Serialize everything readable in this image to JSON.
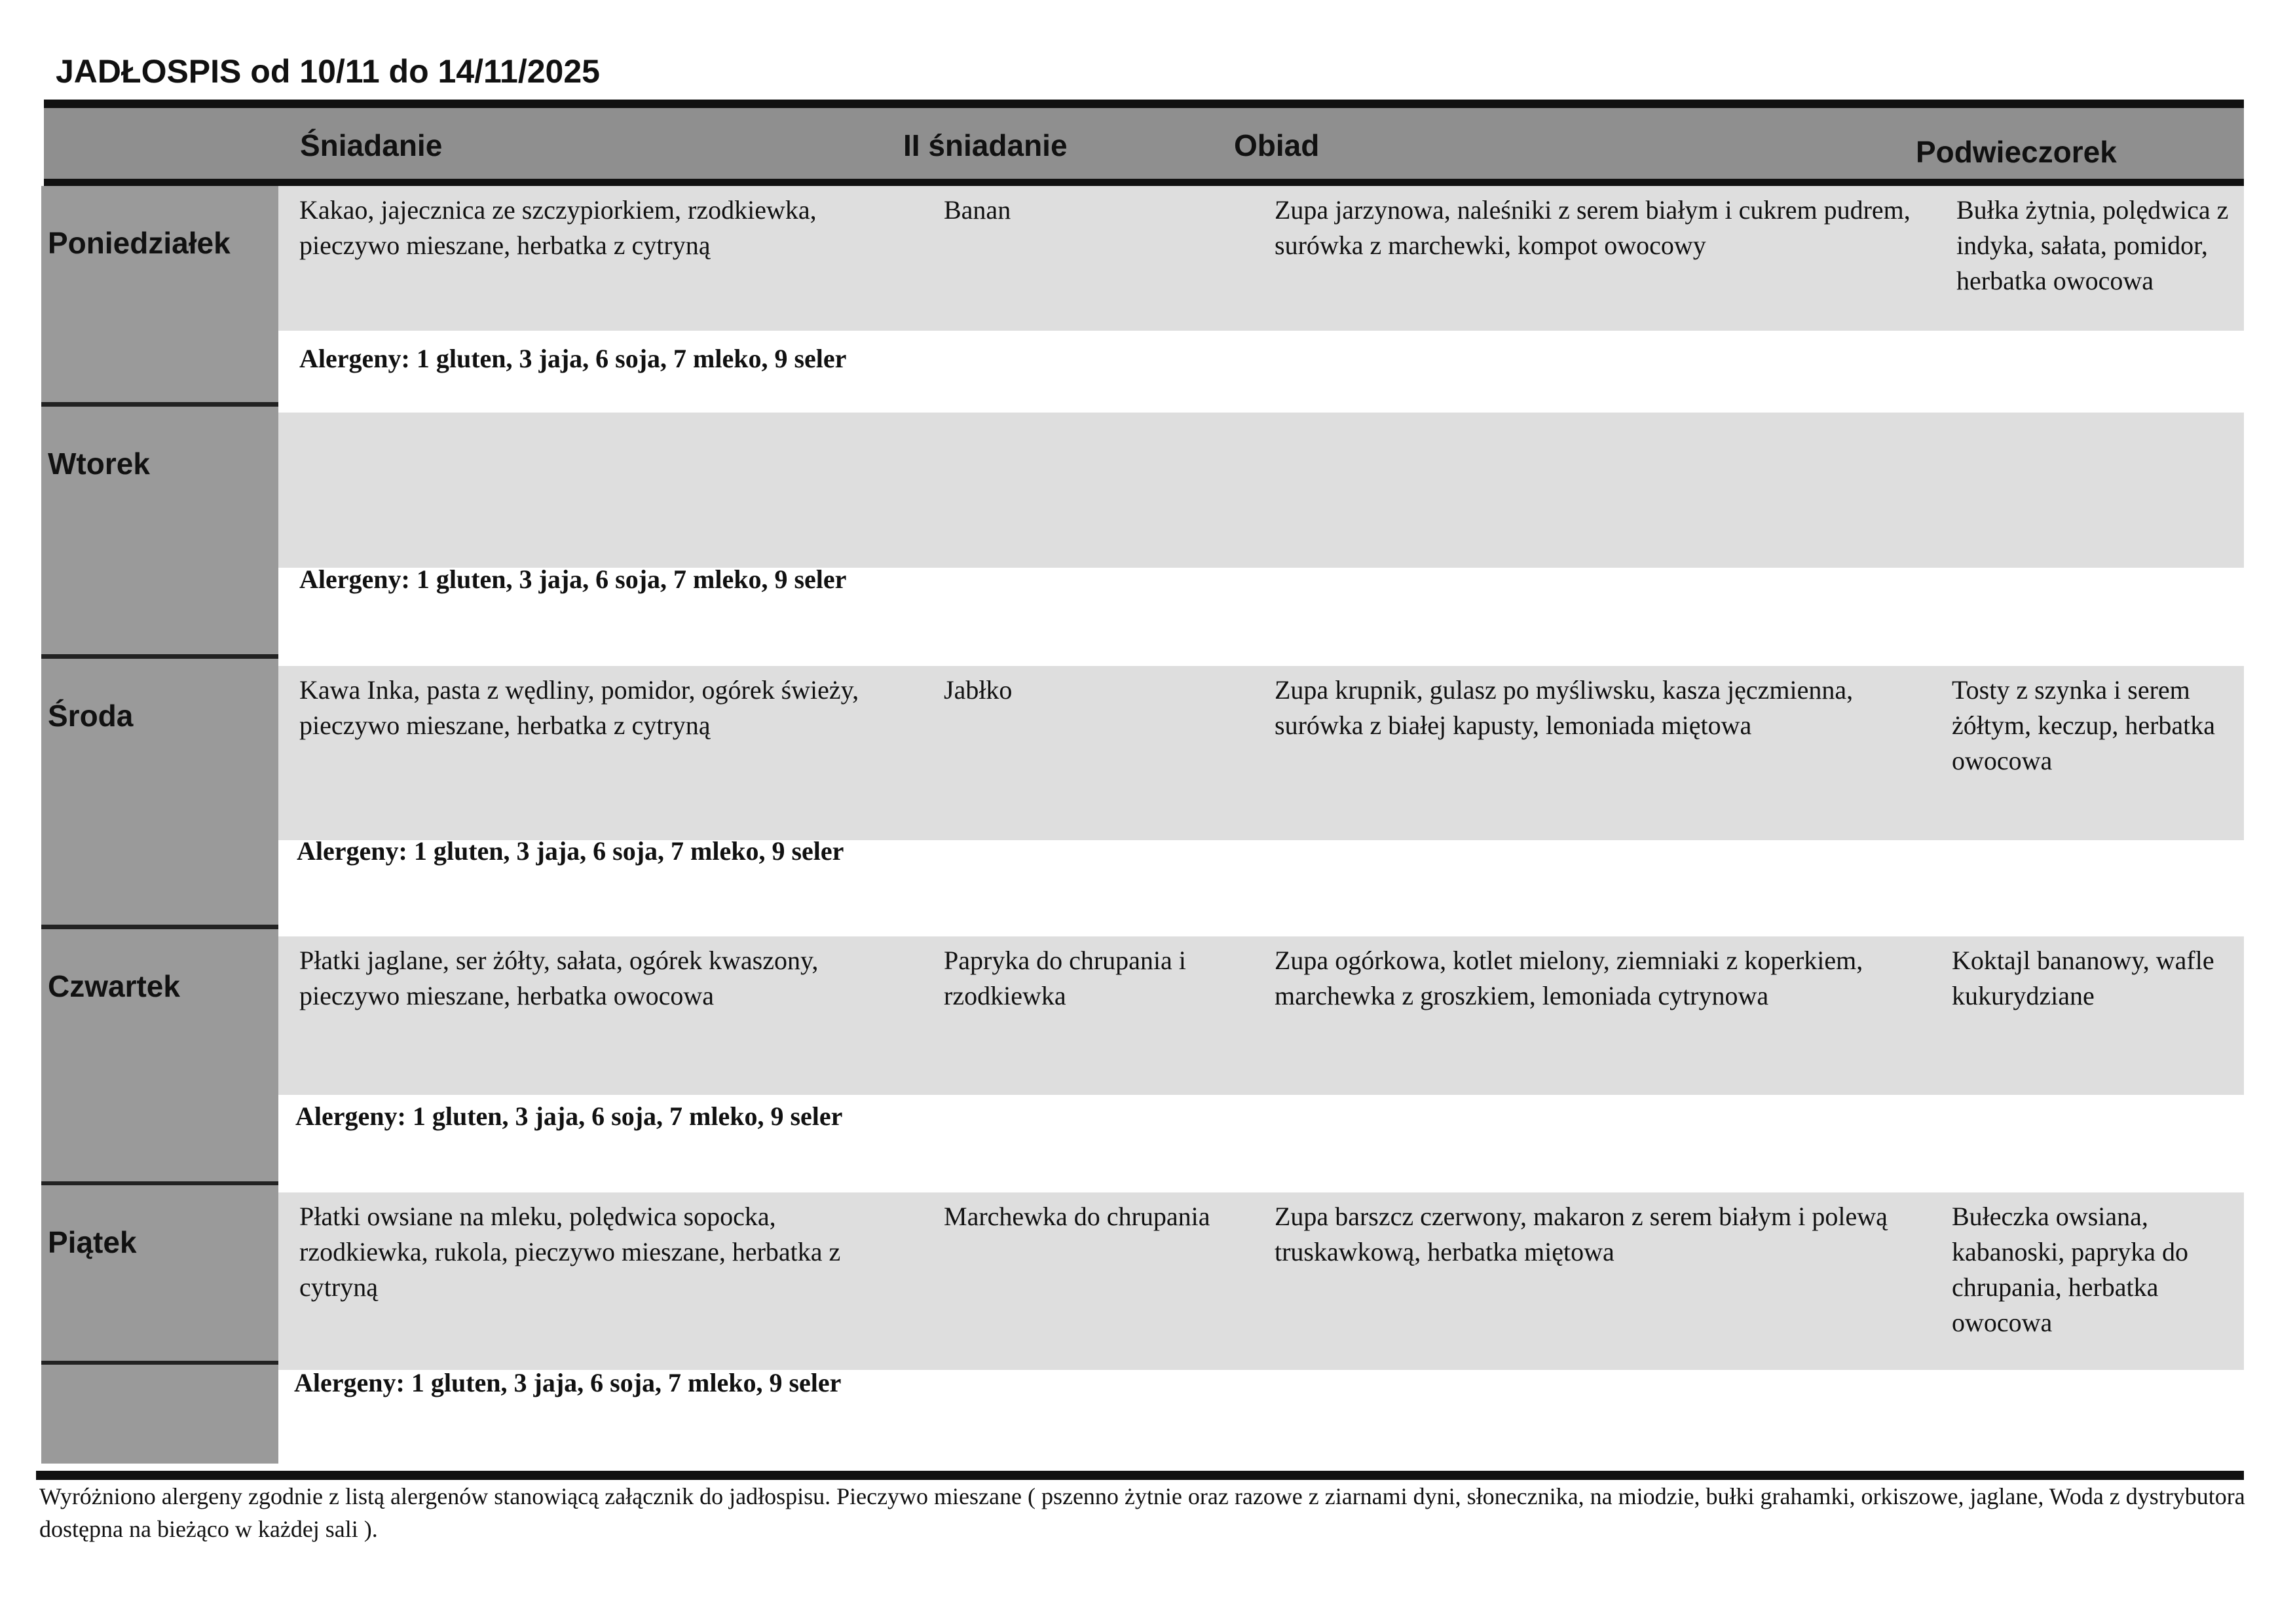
{
  "title": "JADŁOSPIS od 10/11 do 14/11/2025",
  "headers": [
    "Śniadanie",
    "II śniadanie",
    "Obiad",
    "Podwieczorek"
  ],
  "days": [
    {
      "day": "Poniedziałek",
      "sniadanie": "Kakao, jajecznica ze szczypiorkiem, rzodkiewka, pieczywo mieszane, herbatka z cytryną",
      "ii_sniadanie": "Banan",
      "obiad": "Zupa jarzynowa, naleśniki z serem białym i cukrem pudrem, surówka z marchewki, kompot owocowy",
      "podwieczorek": "Bułka żytnia, polędwica z indyka, sałata, pomidor, herbatka owocowa",
      "alergeny": "Alergeny: 1 gluten, 3 jaja, 6 soja, 7 mleko, 9 seler"
    },
    {
      "day": "Wtorek",
      "sniadanie": "",
      "ii_sniadanie": "",
      "obiad": "",
      "podwieczorek": "",
      "alergeny": "Alergeny: 1 gluten, 3 jaja, 6 soja, 7 mleko, 9 seler"
    },
    {
      "day": "Środa",
      "sniadanie": "Kawa Inka, pasta z wędliny, pomidor, ogórek świeży, pieczywo mieszane, herbatka z cytryną",
      "ii_sniadanie": "Jabłko",
      "obiad": "Zupa krupnik, gulasz po myśliwsku, kasza jęczmienna, surówka z białej kapusty, lemoniada miętowa",
      "podwieczorek": "Tosty z szynka i serem żółtym, keczup, herbatka owocowa",
      "alergeny": "Alergeny: 1 gluten, 3 jaja, 6 soja, 7 mleko, 9 seler"
    },
    {
      "day": "Czwartek",
      "sniadanie": "Płatki jaglane, ser żółty, sałata, ogórek kwaszony, pieczywo mieszane, herbatka owocowa",
      "ii_sniadanie": "Papryka do chrupania i rzodkiewka",
      "obiad": "Zupa ogórkowa, kotlet mielony, ziemniaki z koperkiem, marchewka z groszkiem, lemoniada cytrynowa",
      "podwieczorek": "Koktajl bananowy, wafle kukurydziane",
      "alergeny": "Alergeny: 1 gluten, 3 jaja, 6 soja, 7 mleko, 9 seler"
    },
    {
      "day": "Piątek",
      "sniadanie": "Płatki owsiane na mleku, polędwica sopocka, rzodkiewka, rukola, pieczywo mieszane, herbatka z cytryną",
      "ii_sniadanie": "Marchewka do chrupania",
      "obiad": "Zupa barszcz czerwony, makaron z serem białym i polewą truskawkową, herbatka miętowa",
      "podwieczorek": "Bułeczka owsiana, kabanoski, papryka do chrupania, herbatka owocowa",
      "alergeny": "Alergeny: 1 gluten, 3 jaja, 6 soja, 7 mleko, 9 seler"
    }
  ],
  "footer": "Wyróżniono alergeny zgodnie z listą alergenów stanowiącą załącznik do jadłospisu. Pieczywo mieszane ( pszenno żytnie oraz razowe z ziarnami dyni, słonecznika, na miodzie, bułki grahamki, orkiszowe, jaglane, Woda z dystrybutora dostępna na bieżąco w każdej sali )."
}
